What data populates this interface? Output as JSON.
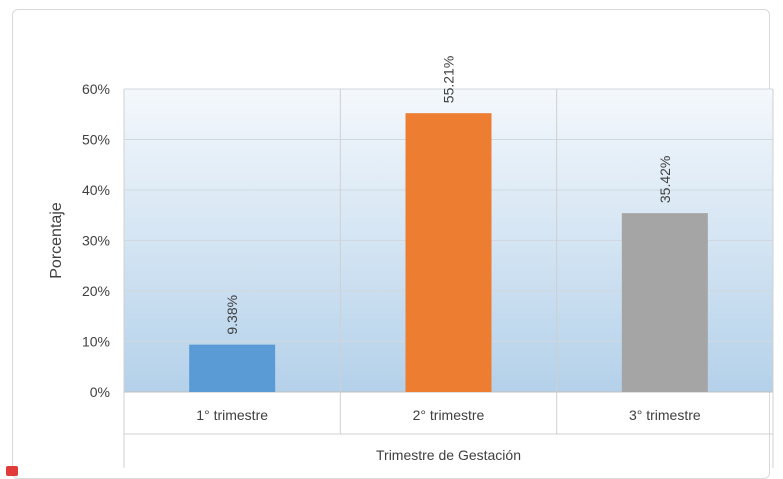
{
  "chart_data": {
    "type": "bar",
    "categories": [
      "1° trimestre",
      "2° trimestre",
      "3° trimestre"
    ],
    "values": [
      9.38,
      55.21,
      35.42
    ],
    "value_labels": [
      "9.38%",
      "55.21%",
      "35.42%"
    ],
    "colors": [
      "#5b9bd5",
      "#ed7d31",
      "#a5a5a5"
    ],
    "title": "",
    "xlabel": "Trimestre de Gestación",
    "ylabel": "Porcentaje",
    "ylim": [
      0,
      60
    ],
    "yticks": [
      "0%",
      "10%",
      "20%",
      "30%",
      "40%",
      "50%",
      "60%"
    ],
    "grid": true,
    "legend": "none"
  }
}
